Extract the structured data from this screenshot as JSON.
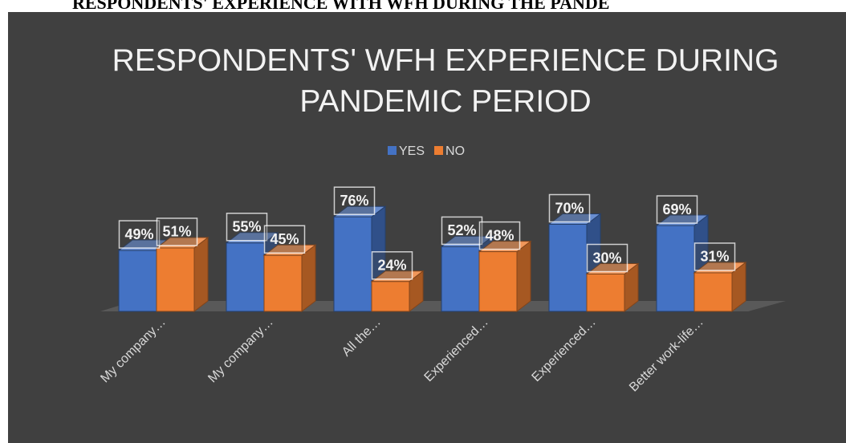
{
  "heading": "RESPONDENTS' EXPERIENCE WITH WFH DURING THE PANDE",
  "chart_data": {
    "type": "bar3d",
    "title": "RESPONDENTS' WFH EXPERIENCE DURING PANDEMIC PERIOD",
    "categories": [
      "My company…",
      "My company…",
      "All the…",
      "Experienced…",
      "Experienced…",
      "Better work-life…"
    ],
    "series": [
      {
        "name": "YES",
        "color": "#4472c4",
        "values": [
          49,
          55,
          76,
          52,
          70,
          69
        ],
        "value_labels": [
          "49%",
          "55%",
          "76%",
          "52%",
          "70%",
          "69%"
        ]
      },
      {
        "name": "NO",
        "color": "#ed7d31",
        "values": [
          51,
          45,
          24,
          48,
          30,
          31
        ],
        "value_labels": [
          "51%",
          "45%",
          "24%",
          "48%",
          "30%",
          "31%"
        ]
      }
    ],
    "ylim": [
      0,
      100
    ],
    "legend": "top"
  }
}
